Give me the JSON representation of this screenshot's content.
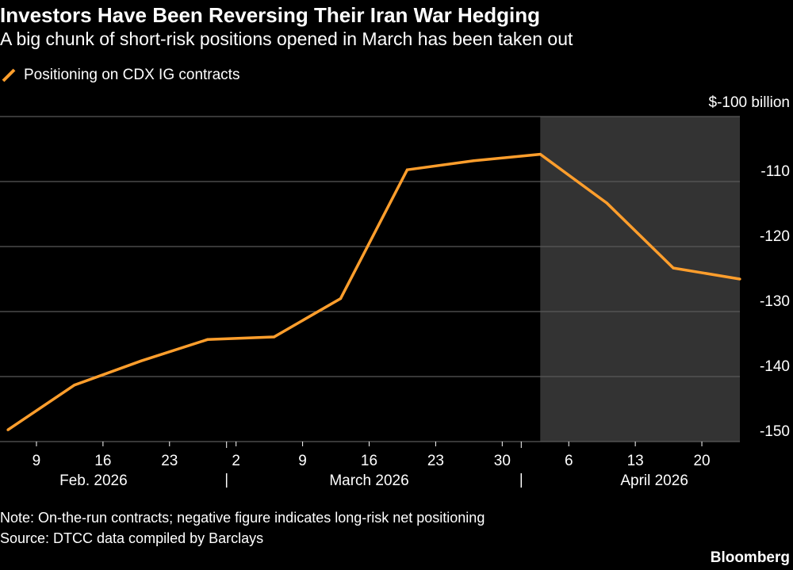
{
  "title": "Investors Have Been Reversing Their Iran War Hedging",
  "subtitle": "A big chunk of short-risk positions opened in March has been taken out",
  "legend": {
    "label": "Positioning on CDX IG contracts",
    "color": "#ff9e2c",
    "icon": "slash-line-icon"
  },
  "unit_label": "$-100 billion",
  "note": "Note: On-the-run contracts; negative figure indicates long-risk net positioning",
  "source": "Source: DTCC data compiled by Barclays",
  "brand": "Bloomberg",
  "colors": {
    "background": "#000000",
    "line": "#ff9e2c",
    "grid": "#5a5a5a",
    "shade": "#333333",
    "text": "#ffffff"
  },
  "chart_data": {
    "type": "line",
    "title": "Investors Have Been Reversing Their Iran War Hedging",
    "subtitle": "A big chunk of short-risk positions opened in March has been taken out",
    "xlabel": "",
    "ylabel": "$-100 billion",
    "x_range": [
      "2026-02-06",
      "2026-04-24"
    ],
    "ylim": [
      -150,
      -100
    ],
    "y_ticks": [
      -110,
      -120,
      -130,
      -140,
      -150
    ],
    "y_tick_labels": [
      "-110",
      "-120",
      "-130",
      "-140",
      "-150"
    ],
    "x_ticks": [
      {
        "date": "2026-02-09",
        "label": "9"
      },
      {
        "date": "2026-02-16",
        "label": "16"
      },
      {
        "date": "2026-02-23",
        "label": "23"
      },
      {
        "date": "2026-03-02",
        "label": "2"
      },
      {
        "date": "2026-03-09",
        "label": "9"
      },
      {
        "date": "2026-03-16",
        "label": "16"
      },
      {
        "date": "2026-03-23",
        "label": "23"
      },
      {
        "date": "2026-03-30",
        "label": "30"
      },
      {
        "date": "2026-04-06",
        "label": "6"
      },
      {
        "date": "2026-04-13",
        "label": "13"
      },
      {
        "date": "2026-04-20",
        "label": "20"
      }
    ],
    "months": [
      {
        "label": "Feb. 2026",
        "center": "2026-02-15"
      },
      {
        "label": "March 2026",
        "center": "2026-03-16"
      },
      {
        "label": "April 2026",
        "center": "2026-04-15"
      }
    ],
    "month_boundaries": [
      "2026-03-01",
      "2026-04-01"
    ],
    "shaded_region": {
      "from": "2026-04-03",
      "to": "2026-04-24"
    },
    "grid": true,
    "legend_position": "top-left",
    "series": [
      {
        "name": "Positioning on CDX IG contracts",
        "color": "#ff9e2c",
        "points": [
          {
            "x": "2026-02-06",
            "y": -148.2
          },
          {
            "x": "2026-02-13",
            "y": -141.3
          },
          {
            "x": "2026-02-20",
            "y": -137.6
          },
          {
            "x": "2026-02-27",
            "y": -134.3
          },
          {
            "x": "2026-03-06",
            "y": -133.9
          },
          {
            "x": "2026-03-13",
            "y": -128.0
          },
          {
            "x": "2026-03-20",
            "y": -108.2
          },
          {
            "x": "2026-03-27",
            "y": -106.8
          },
          {
            "x": "2026-04-03",
            "y": -105.8
          },
          {
            "x": "2026-04-10",
            "y": -113.3
          },
          {
            "x": "2026-04-17",
            "y": -123.3
          },
          {
            "x": "2026-04-24",
            "y": -125.0
          }
        ]
      }
    ]
  }
}
